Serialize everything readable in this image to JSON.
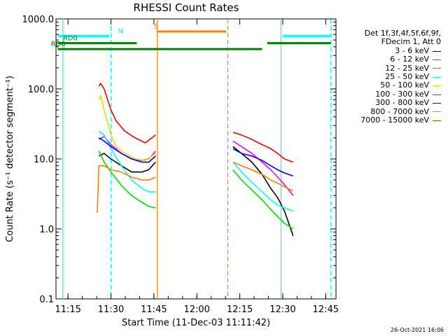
{
  "chart_data": {
    "type": "line",
    "title": "RHESSI Count Rates",
    "xlabel": "Start Time (11-Dec-03 11:11:42)",
    "ylabel": "Count Rate (s⁻¹ detector segment⁻¹)",
    "yscale": "log",
    "xlim": [
      11.18,
      12.81
    ],
    "ylim": [
      0.1,
      1000
    ],
    "x_unit": "decimal hour",
    "xticks": [
      {
        "value": 11.25,
        "label": "11:15"
      },
      {
        "value": 11.5,
        "label": "11:30"
      },
      {
        "value": 11.75,
        "label": "11:45"
      },
      {
        "value": 12.0,
        "label": "12:00"
      },
      {
        "value": 12.25,
        "label": "12:15"
      },
      {
        "value": 12.5,
        "label": "12:30"
      },
      {
        "value": 12.75,
        "label": "12:45"
      }
    ],
    "yticks": [
      {
        "value": 0.1,
        "label": "0.1"
      },
      {
        "value": 1,
        "label": "1.0"
      },
      {
        "value": 10,
        "label": "10.0"
      },
      {
        "value": 100,
        "label": "100.0"
      },
      {
        "value": 1000,
        "label": "1000.0"
      }
    ],
    "legend_header": [
      "Det 1f,3f,4f,5f,6f,9f,",
      "FDecim 1, Att 0"
    ],
    "series": [
      {
        "name": "3 - 6 keV",
        "color": "#000000",
        "x": [
          11.43,
          11.46,
          11.5,
          11.56,
          11.62,
          11.68,
          11.72,
          11.76,
          12.21,
          12.26,
          12.32,
          12.38,
          12.43,
          12.47,
          12.51,
          12.56
        ],
        "y": [
          11,
          12,
          10,
          8,
          6.5,
          6.5,
          7,
          9,
          15,
          12,
          9,
          6,
          3.8,
          2.8,
          1.8,
          0.8
        ]
      },
      {
        "name": "6 - 12 keV",
        "color": "#ff00ff",
        "x": [
          11.43,
          11.46,
          11.5,
          11.56,
          11.62,
          11.68,
          11.72,
          11.76,
          12.21,
          12.26,
          12.32,
          12.38,
          12.43,
          12.47,
          12.51,
          12.56
        ],
        "y": [
          19,
          21,
          16,
          12,
          10,
          9.5,
          10,
          13,
          18,
          15,
          12,
          9,
          7,
          5.5,
          4.3,
          3
        ]
      },
      {
        "name": "12 - 25 keV",
        "color": "#00e000",
        "x": [
          11.43,
          11.46,
          11.5,
          11.56,
          11.62,
          11.68,
          11.72,
          11.76,
          12.21,
          12.26,
          12.32,
          12.38,
          12.43,
          12.47,
          12.51,
          12.56
        ],
        "y": [
          13,
          9,
          6.5,
          4.2,
          3,
          2.4,
          2.1,
          2,
          7,
          5,
          3.6,
          2.6,
          1.9,
          1.5,
          1.2,
          1.0
        ]
      },
      {
        "name": "25 - 50 keV",
        "color": "#00ffff",
        "x": [
          11.43,
          11.46,
          11.5,
          11.56,
          11.62,
          11.68,
          11.72,
          11.76,
          12.21,
          12.26,
          12.32,
          12.38,
          12.43,
          12.47,
          12.51,
          12.56
        ],
        "y": [
          25,
          22,
          14,
          8,
          5,
          3.8,
          3.4,
          3.4,
          9,
          6.5,
          4.6,
          3.4,
          2.6,
          2.2,
          2.0,
          1.8
        ]
      },
      {
        "name": "50 - 100 keV",
        "color": "#e0e000",
        "x": [
          11.43,
          11.44,
          11.46,
          11.5,
          11.53,
          11.58,
          11.64,
          11.7,
          11.76
        ],
        "y": [
          70,
          80,
          50,
          22,
          15,
          12,
          10,
          9.5,
          12
        ]
      },
      {
        "name": "100 - 300 keV",
        "color": "#ff0000",
        "x": [
          11.43,
          11.44,
          11.46,
          11.5,
          11.53,
          11.58,
          11.64,
          11.7,
          11.76,
          12.21,
          12.26,
          12.32,
          12.38,
          12.43,
          12.47,
          12.51,
          12.56
        ],
        "y": [
          110,
          120,
          100,
          50,
          35,
          25,
          20,
          17,
          22,
          24,
          22,
          19,
          16,
          14,
          12,
          10,
          9
        ]
      },
      {
        "name": "300 - 800 keV",
        "color": "#0000ff",
        "x": [
          11.43,
          11.46,
          11.5,
          11.56,
          11.62,
          11.68,
          11.72,
          11.76,
          12.21,
          12.26,
          12.32,
          12.38,
          12.43,
          12.47,
          12.51,
          12.56
        ],
        "y": [
          20,
          18,
          15,
          12,
          10,
          9,
          9,
          11,
          14,
          12,
          11,
          9.5,
          8,
          7,
          6.3,
          5.7
        ]
      },
      {
        "name": "800 - 7000 keV",
        "color": "#ff8000",
        "x": [
          11.42,
          11.43,
          11.46,
          11.5,
          11.56,
          11.62,
          11.68,
          11.72,
          11.76,
          12.21,
          12.26,
          12.32,
          12.38,
          12.43,
          12.47,
          12.51,
          12.56
        ],
        "y": [
          1.7,
          8,
          8,
          7,
          6.5,
          5.5,
          5,
          5,
          5.5,
          9,
          8,
          7,
          6,
          5,
          4.5,
          4,
          3.5
        ]
      },
      {
        "name": "7000 - 15000 keV",
        "color": "#a06000",
        "x": [],
        "y": []
      }
    ],
    "markers": [
      {
        "x": 11.22,
        "color": "#00ffff",
        "style": "solid"
      },
      {
        "x": 11.5,
        "color": "#00ffff",
        "style": "dashed"
      },
      {
        "x": 11.77,
        "color": "#ff8000",
        "style": "solid"
      },
      {
        "x": 12.18,
        "color": "#ff8000",
        "style": "dashed"
      },
      {
        "x": 12.49,
        "color": "#00ffff",
        "style": "solid"
      },
      {
        "x": 12.78,
        "color": "#00ffff",
        "style": "dashed"
      }
    ],
    "flag_bars": [
      {
        "label": "N",
        "label_x": 11.54,
        "color": "#00ffff",
        "level": 570,
        "segments": [
          [
            11.19,
            11.49
          ],
          [
            12.5,
            12.78
          ]
        ]
      },
      {
        "label": "S",
        "label_x": 11.75,
        "color": "#ff8000",
        "level": 660,
        "segments": [
          [
            11.77,
            12.17
          ]
        ]
      },
      {
        "label": "RD0",
        "label_x": 11.22,
        "color": "#008000",
        "level": 450,
        "segments": [
          [
            11.19,
            11.65
          ],
          [
            12.41,
            12.78
          ]
        ]
      },
      {
        "label": "RD6",
        "label_x": 11.15,
        "color": "#008000",
        "level": 370,
        "segments": [
          [
            11.19,
            11.63
          ],
          [
            11.63,
            12.18
          ],
          [
            12.18,
            12.38
          ]
        ]
      }
    ]
  },
  "timestamp": "26-Oct-2021 16:06"
}
